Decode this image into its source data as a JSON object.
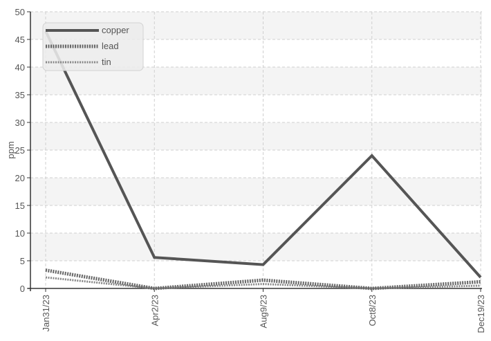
{
  "chart_data": {
    "type": "line",
    "title": "",
    "xlabel": "",
    "ylabel": "ppm",
    "categories": [
      "Jan31/23",
      "Apr2/23",
      "Aug9/23",
      "Oct8/23",
      "Dec19/23"
    ],
    "x_dates": [
      "2023-01-31",
      "2023-04-02",
      "2023-08-09",
      "2023-10-08",
      "2023-12-19"
    ],
    "yticks": [
      "0",
      "5",
      "10",
      "15",
      "20",
      "25",
      "30",
      "35",
      "40",
      "45",
      "50"
    ],
    "ylim": [
      0,
      50
    ],
    "grid": true,
    "legend_position": "top-left",
    "series": [
      {
        "name": "copper",
        "values": [
          46.5,
          5.6,
          4.3,
          24.0,
          2.0
        ],
        "color": "#555555",
        "style": "solid"
      },
      {
        "name": "lead",
        "values": [
          3.3,
          0.0,
          1.5,
          0.0,
          1.2
        ],
        "color": "#666666",
        "style": "dotted"
      },
      {
        "name": "tin",
        "values": [
          2.0,
          0.0,
          0.8,
          0.0,
          0.5
        ],
        "color": "#888888",
        "style": "dotted-thin"
      }
    ]
  }
}
